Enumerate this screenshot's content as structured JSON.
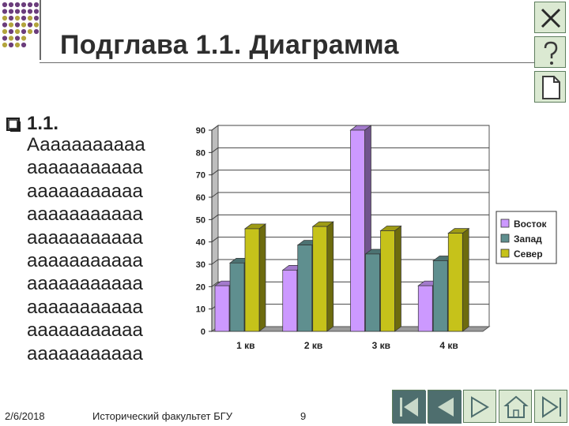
{
  "slide": {
    "title": "Подглава 1.1. Диаграмма",
    "bullet_heading": "1.1.",
    "bullet_text": "Ааааааааааа\nааааааааааа\nааааааааааа\nааааааааааа\nааааааааааа\nааааааааааа\nааааааааааа\nааааааааааа\nааааааааааа\nааааааааааа"
  },
  "footer": {
    "date": "2/6/2018",
    "organization": "Исторический факультет БГУ",
    "page_number": "9"
  },
  "side_buttons": [
    "close-icon",
    "help-icon",
    "document-icon"
  ],
  "nav_buttons": [
    "first-slide-icon",
    "previous-slide-icon",
    "next-slide-icon",
    "home-icon",
    "last-slide-icon"
  ],
  "colors": {
    "title": "#2e2e2e",
    "dots_purple": "#6b3d7c",
    "dots_olive": "#b3a53c",
    "button_fill": "#dbe9d2",
    "nav_dark": "#4e6e6e"
  },
  "chart_data": {
    "type": "bar",
    "style": "3d-clustered",
    "categories": [
      "1 кв",
      "2 кв",
      "3 кв",
      "4 кв"
    ],
    "series": [
      {
        "name": "Восток",
        "values": [
          20.4,
          27.4,
          90,
          20.4
        ],
        "color": "#cc99ff"
      },
      {
        "name": "Запад",
        "values": [
          30.6,
          38.6,
          34.6,
          31.6
        ],
        "color": "#5f8f8f"
      },
      {
        "name": "Север",
        "values": [
          45.9,
          46.9,
          45,
          43.9
        ],
        "color": "#c6c21a"
      }
    ],
    "ylim": [
      0,
      90
    ],
    "yticks": [
      "0",
      "10",
      "20",
      "30",
      "40",
      "50",
      "60",
      "70",
      "80",
      "90"
    ],
    "grid": true,
    "legend": "right"
  }
}
